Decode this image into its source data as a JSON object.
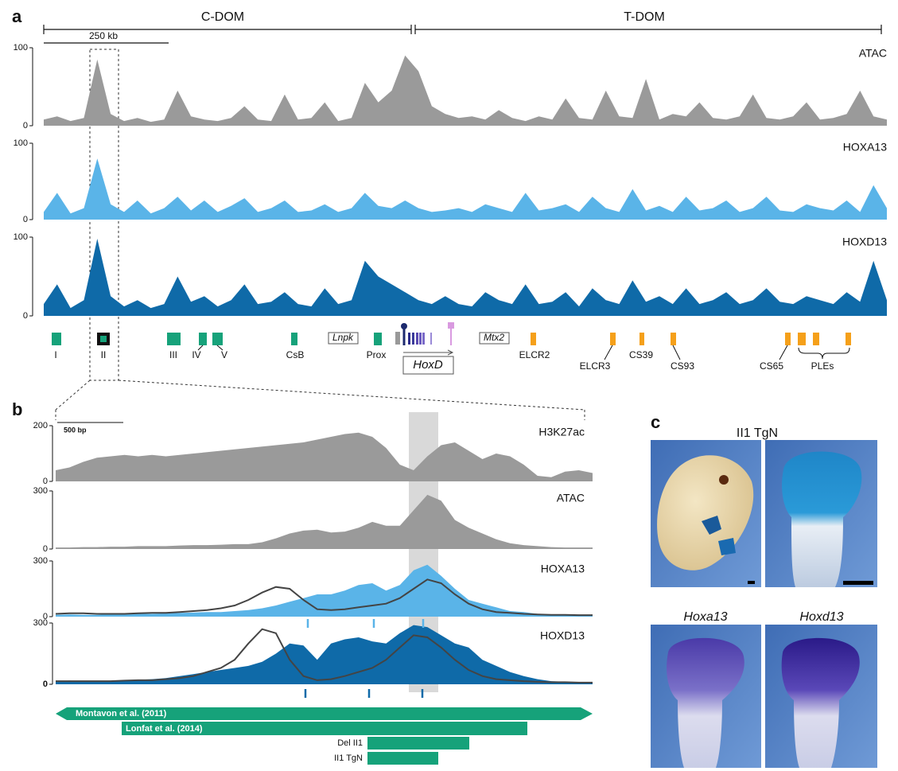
{
  "panel_a": {
    "label": "a",
    "domains": [
      "C-DOM",
      "T-DOM"
    ],
    "scale_bar": "250 kb",
    "tracks": [
      {
        "name": "ATAC",
        "color": "#9a9a9a",
        "ylim": [
          0,
          100
        ],
        "yticks": [
          0,
          100
        ],
        "values": [
          8,
          12,
          6,
          10,
          85,
          15,
          6,
          10,
          5,
          8,
          45,
          12,
          8,
          6,
          10,
          25,
          8,
          6,
          40,
          8,
          10,
          30,
          6,
          10,
          55,
          30,
          45,
          90,
          70,
          25,
          15,
          10,
          12,
          8,
          20,
          10,
          6,
          12,
          8,
          35,
          10,
          8,
          45,
          12,
          10,
          60,
          8,
          15,
          12,
          30,
          10,
          8,
          12,
          40,
          10,
          8,
          12,
          30,
          8,
          10,
          15,
          45,
          12,
          8
        ]
      },
      {
        "name": "HOXA13",
        "color": "#5ab4e8",
        "ylim": [
          0,
          100
        ],
        "yticks": [
          0,
          100
        ],
        "values": [
          10,
          35,
          8,
          15,
          80,
          20,
          10,
          25,
          8,
          15,
          30,
          12,
          25,
          10,
          18,
          28,
          10,
          15,
          25,
          10,
          12,
          20,
          10,
          15,
          35,
          18,
          15,
          25,
          15,
          10,
          12,
          15,
          10,
          20,
          15,
          10,
          35,
          12,
          15,
          20,
          10,
          30,
          15,
          10,
          40,
          12,
          18,
          10,
          30,
          12,
          15,
          25,
          10,
          15,
          30,
          12,
          10,
          20,
          15,
          12,
          25,
          10,
          45,
          15
        ]
      },
      {
        "name": "HOXD13",
        "color": "#0f6aa8",
        "ylim": [
          0,
          100
        ],
        "yticks": [
          0,
          100
        ],
        "values": [
          15,
          40,
          10,
          20,
          98,
          25,
          12,
          20,
          10,
          15,
          50,
          18,
          25,
          12,
          20,
          40,
          15,
          18,
          30,
          15,
          12,
          35,
          15,
          20,
          70,
          50,
          40,
          30,
          20,
          15,
          25,
          15,
          12,
          30,
          20,
          15,
          40,
          15,
          18,
          30,
          12,
          35,
          20,
          15,
          45,
          18,
          25,
          15,
          35,
          15,
          20,
          30,
          15,
          20,
          35,
          18,
          15,
          25,
          20,
          15,
          30,
          18,
          70,
          20
        ]
      }
    ],
    "elements": [
      {
        "label": "I",
        "color": "#16a27a"
      },
      {
        "label": "II",
        "color": "#16a27a"
      },
      {
        "label": "III",
        "color": "#16a27a"
      },
      {
        "label": "IV",
        "color": "#16a27a"
      },
      {
        "label": "V",
        "color": "#16a27a"
      },
      {
        "label": "CsB",
        "color": "#16a27a"
      },
      {
        "label": "Prox",
        "color": "#16a27a"
      },
      {
        "label": "ELCR2",
        "color": "#f5a01a"
      },
      {
        "label": "ELCR3",
        "color": "#f5a01a"
      },
      {
        "label": "CS39",
        "color": "#f5a01a"
      },
      {
        "label": "CS93",
        "color": "#f5a01a"
      },
      {
        "label": "CS65",
        "color": "#f5a01a"
      },
      {
        "label": "PLEs",
        "color": "#f5a01a"
      }
    ],
    "genes": {
      "left": "Lnpk",
      "cluster": "HoxD",
      "right": "Mtx2"
    }
  },
  "panel_b": {
    "label": "b",
    "scale_bar": "500 bp",
    "tracks": [
      {
        "name": "H3K27ac",
        "color": "#9a9a9a",
        "ylim": [
          0,
          200
        ],
        "yticks": [
          0,
          200
        ],
        "values": [
          40,
          50,
          70,
          85,
          90,
          95,
          90,
          95,
          90,
          95,
          100,
          105,
          110,
          115,
          120,
          125,
          130,
          135,
          140,
          150,
          160,
          170,
          175,
          160,
          120,
          60,
          40,
          90,
          130,
          140,
          110,
          80,
          100,
          90,
          60,
          20,
          15,
          35,
          40,
          30
        ]
      },
      {
        "name": "ATAC",
        "color": "#9a9a9a",
        "ylim": [
          0,
          300
        ],
        "yticks": [
          0,
          300
        ],
        "values": [
          8,
          8,
          10,
          10,
          12,
          12,
          15,
          15,
          15,
          18,
          20,
          20,
          22,
          25,
          25,
          35,
          55,
          80,
          95,
          100,
          85,
          90,
          110,
          140,
          120,
          120,
          200,
          280,
          250,
          150,
          110,
          80,
          50,
          30,
          20,
          15,
          10,
          8,
          8,
          8
        ]
      },
      {
        "name": "HOXA13",
        "color": "#5ab4e8",
        "line_color": "#444444",
        "ylim": [
          0,
          300
        ],
        "yticks": [
          0,
          300
        ],
        "values": [
          10,
          12,
          10,
          10,
          12,
          15,
          15,
          15,
          18,
          20,
          22,
          25,
          25,
          30,
          35,
          45,
          60,
          80,
          100,
          120,
          120,
          140,
          170,
          180,
          140,
          170,
          250,
          280,
          220,
          150,
          90,
          70,
          50,
          30,
          25,
          15,
          12,
          10,
          10,
          8
        ],
        "line_values": [
          15,
          18,
          18,
          15,
          15,
          15,
          18,
          20,
          20,
          25,
          30,
          35,
          45,
          60,
          90,
          130,
          160,
          150,
          90,
          40,
          35,
          40,
          50,
          60,
          70,
          100,
          150,
          200,
          180,
          120,
          70,
          40,
          25,
          20,
          15,
          12,
          10,
          10,
          8,
          8
        ]
      },
      {
        "name": "HOXD13",
        "color": "#0f6aa8",
        "line_color": "#444444",
        "ylim": [
          0,
          300
        ],
        "yticks": [
          0,
          300
        ],
        "values": [
          15,
          18,
          15,
          15,
          18,
          20,
          22,
          25,
          30,
          40,
          50,
          60,
          70,
          80,
          90,
          110,
          150,
          200,
          190,
          120,
          200,
          220,
          230,
          210,
          200,
          250,
          290,
          280,
          240,
          200,
          180,
          120,
          90,
          60,
          40,
          25,
          15,
          12,
          10,
          10
        ],
        "line_values": [
          15,
          15,
          15,
          15,
          15,
          18,
          20,
          20,
          25,
          30,
          40,
          60,
          80,
          120,
          200,
          270,
          250,
          120,
          40,
          20,
          25,
          40,
          60,
          80,
          120,
          180,
          240,
          230,
          180,
          120,
          70,
          40,
          25,
          20,
          15,
          12,
          10,
          10,
          8,
          8
        ]
      }
    ],
    "regions": [
      "Montavon et al. (2011)",
      "Lonfat et al. (2014)",
      "Del II1",
      "II1 TgN"
    ]
  },
  "panel_c": {
    "label": "c",
    "title": "II1 TgN",
    "captions": [
      "Hoxa13",
      "Hoxd13"
    ]
  }
}
